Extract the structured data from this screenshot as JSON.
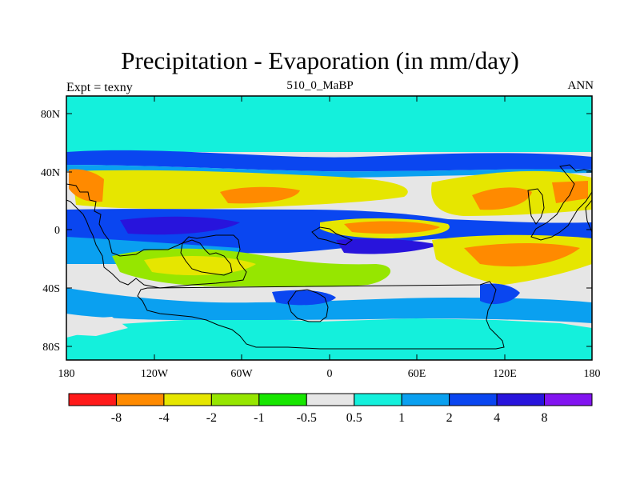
{
  "title": "Precipitation - Evaporation (in mm/day)",
  "subtitle": "510_0_MaBP",
  "left_label": "Expt = texny",
  "right_label": "ANN",
  "colors": {
    "r1": "#ff1a1a",
    "r2": "#ff8a00",
    "r3": "#e6e600",
    "r4": "#96e600",
    "r5": "#17e600",
    "neutral": "#e6e6e6",
    "b1": "#14f0dc",
    "b2": "#0aa0f0",
    "b3": "#0a46f0",
    "b4": "#2814dc",
    "b5": "#8214f0"
  },
  "chart_data": {
    "type": "heatmap",
    "projection": "cylindrical-equidistant",
    "x_range": [
      -180,
      180
    ],
    "y_range": [
      -90,
      90
    ],
    "x_ticks": [
      "180",
      "120W",
      "60W",
      "0",
      "60E",
      "120E",
      "180"
    ],
    "y_ticks": [
      "80N",
      "40N",
      "0",
      "40S",
      "80S"
    ],
    "colorbar": {
      "labels": [
        "-8",
        "-4",
        "-2",
        "-1",
        "-0.5",
        "0.5",
        "1",
        "2",
        "4",
        "8"
      ],
      "boundaries": [
        -8,
        -4,
        -2,
        -1,
        -0.5,
        0.5,
        1,
        2,
        4,
        8
      ],
      "colors": [
        "#ff1a1a",
        "#ff8a00",
        "#e6e600",
        "#96e600",
        "#17e600",
        "#e6e6e6",
        "#14f0dc",
        "#0aa0f0",
        "#0a46f0",
        "#2814dc",
        "#8214f0"
      ]
    }
  }
}
